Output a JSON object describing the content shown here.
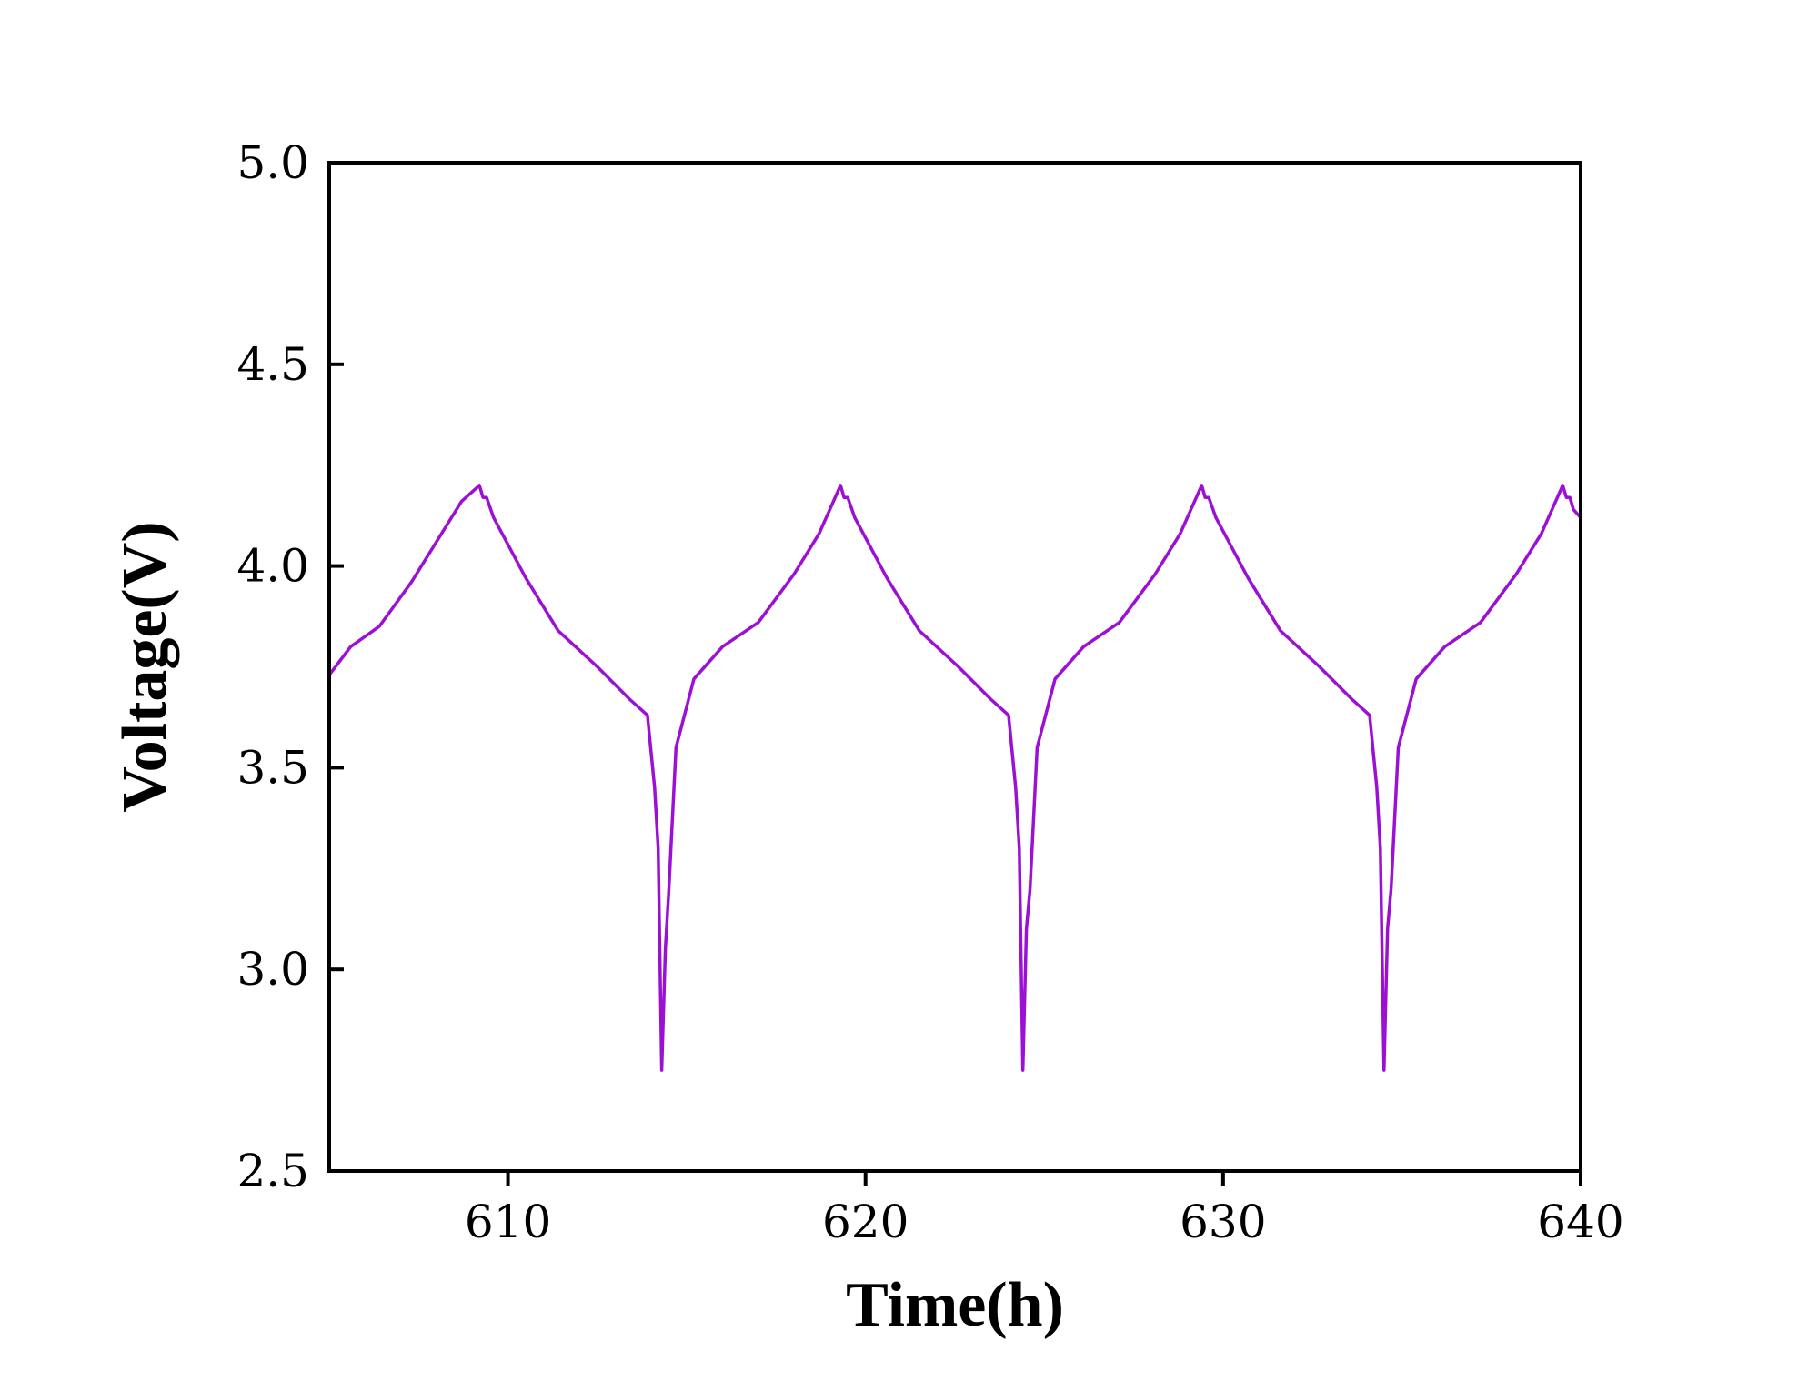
{
  "chart_data": {
    "type": "line",
    "title": "",
    "xlabel": "Time(h)",
    "ylabel": "Voltage(V)",
    "xlim": [
      605,
      640
    ],
    "ylim": [
      2.5,
      5.0
    ],
    "xticks": [
      610,
      620,
      630,
      640
    ],
    "xtick_labels": [
      "610",
      "620",
      "630",
      "640"
    ],
    "yticks": [
      2.5,
      3.0,
      3.5,
      4.0,
      4.5,
      5.0
    ],
    "ytick_labels": [
      "2.5",
      "3.0",
      "3.5",
      "4.0",
      "4.5",
      "5.0"
    ],
    "grid": false,
    "legend": "none",
    "line_color": "#9b10d4",
    "series": [
      {
        "x": [
          605.0,
          605.6,
          606.4,
          607.3,
          608.0,
          608.7,
          609.2,
          609.3,
          609.4,
          609.6,
          610.5,
          611.4,
          612.5,
          613.4,
          613.9,
          614.1,
          614.2,
          614.3,
          614.4,
          614.5,
          614.7,
          615.2,
          616.0,
          617.0,
          618.0,
          618.7,
          619.3,
          619.4,
          619.5,
          619.7,
          620.6,
          621.5,
          622.6,
          623.5,
          624.0,
          624.2,
          624.3,
          624.4,
          624.5,
          624.6,
          624.8,
          625.3,
          626.1,
          627.1,
          628.1,
          628.8,
          629.4,
          629.5,
          629.6,
          629.8,
          630.7,
          631.6,
          632.7,
          633.6,
          634.1,
          634.3,
          634.4,
          634.5,
          634.6,
          634.7,
          634.9,
          635.4,
          636.2,
          637.2,
          638.2,
          638.9,
          639.5,
          639.6,
          639.7,
          639.8,
          640.0
        ],
        "y": [
          3.73,
          3.8,
          3.85,
          3.96,
          4.06,
          4.16,
          4.2,
          4.17,
          4.17,
          4.12,
          3.97,
          3.84,
          3.75,
          3.67,
          3.63,
          3.45,
          3.3,
          2.75,
          3.05,
          3.2,
          3.55,
          3.72,
          3.8,
          3.86,
          3.98,
          4.08,
          4.2,
          4.17,
          4.17,
          4.12,
          3.97,
          3.84,
          3.75,
          3.67,
          3.63,
          3.45,
          3.3,
          2.75,
          3.1,
          3.2,
          3.55,
          3.72,
          3.8,
          3.86,
          3.98,
          4.08,
          4.2,
          4.17,
          4.17,
          4.12,
          3.97,
          3.84,
          3.75,
          3.67,
          3.63,
          3.45,
          3.3,
          2.75,
          3.1,
          3.2,
          3.55,
          3.72,
          3.8,
          3.86,
          3.98,
          4.08,
          4.2,
          4.17,
          4.17,
          4.14,
          4.12
        ]
      }
    ]
  }
}
